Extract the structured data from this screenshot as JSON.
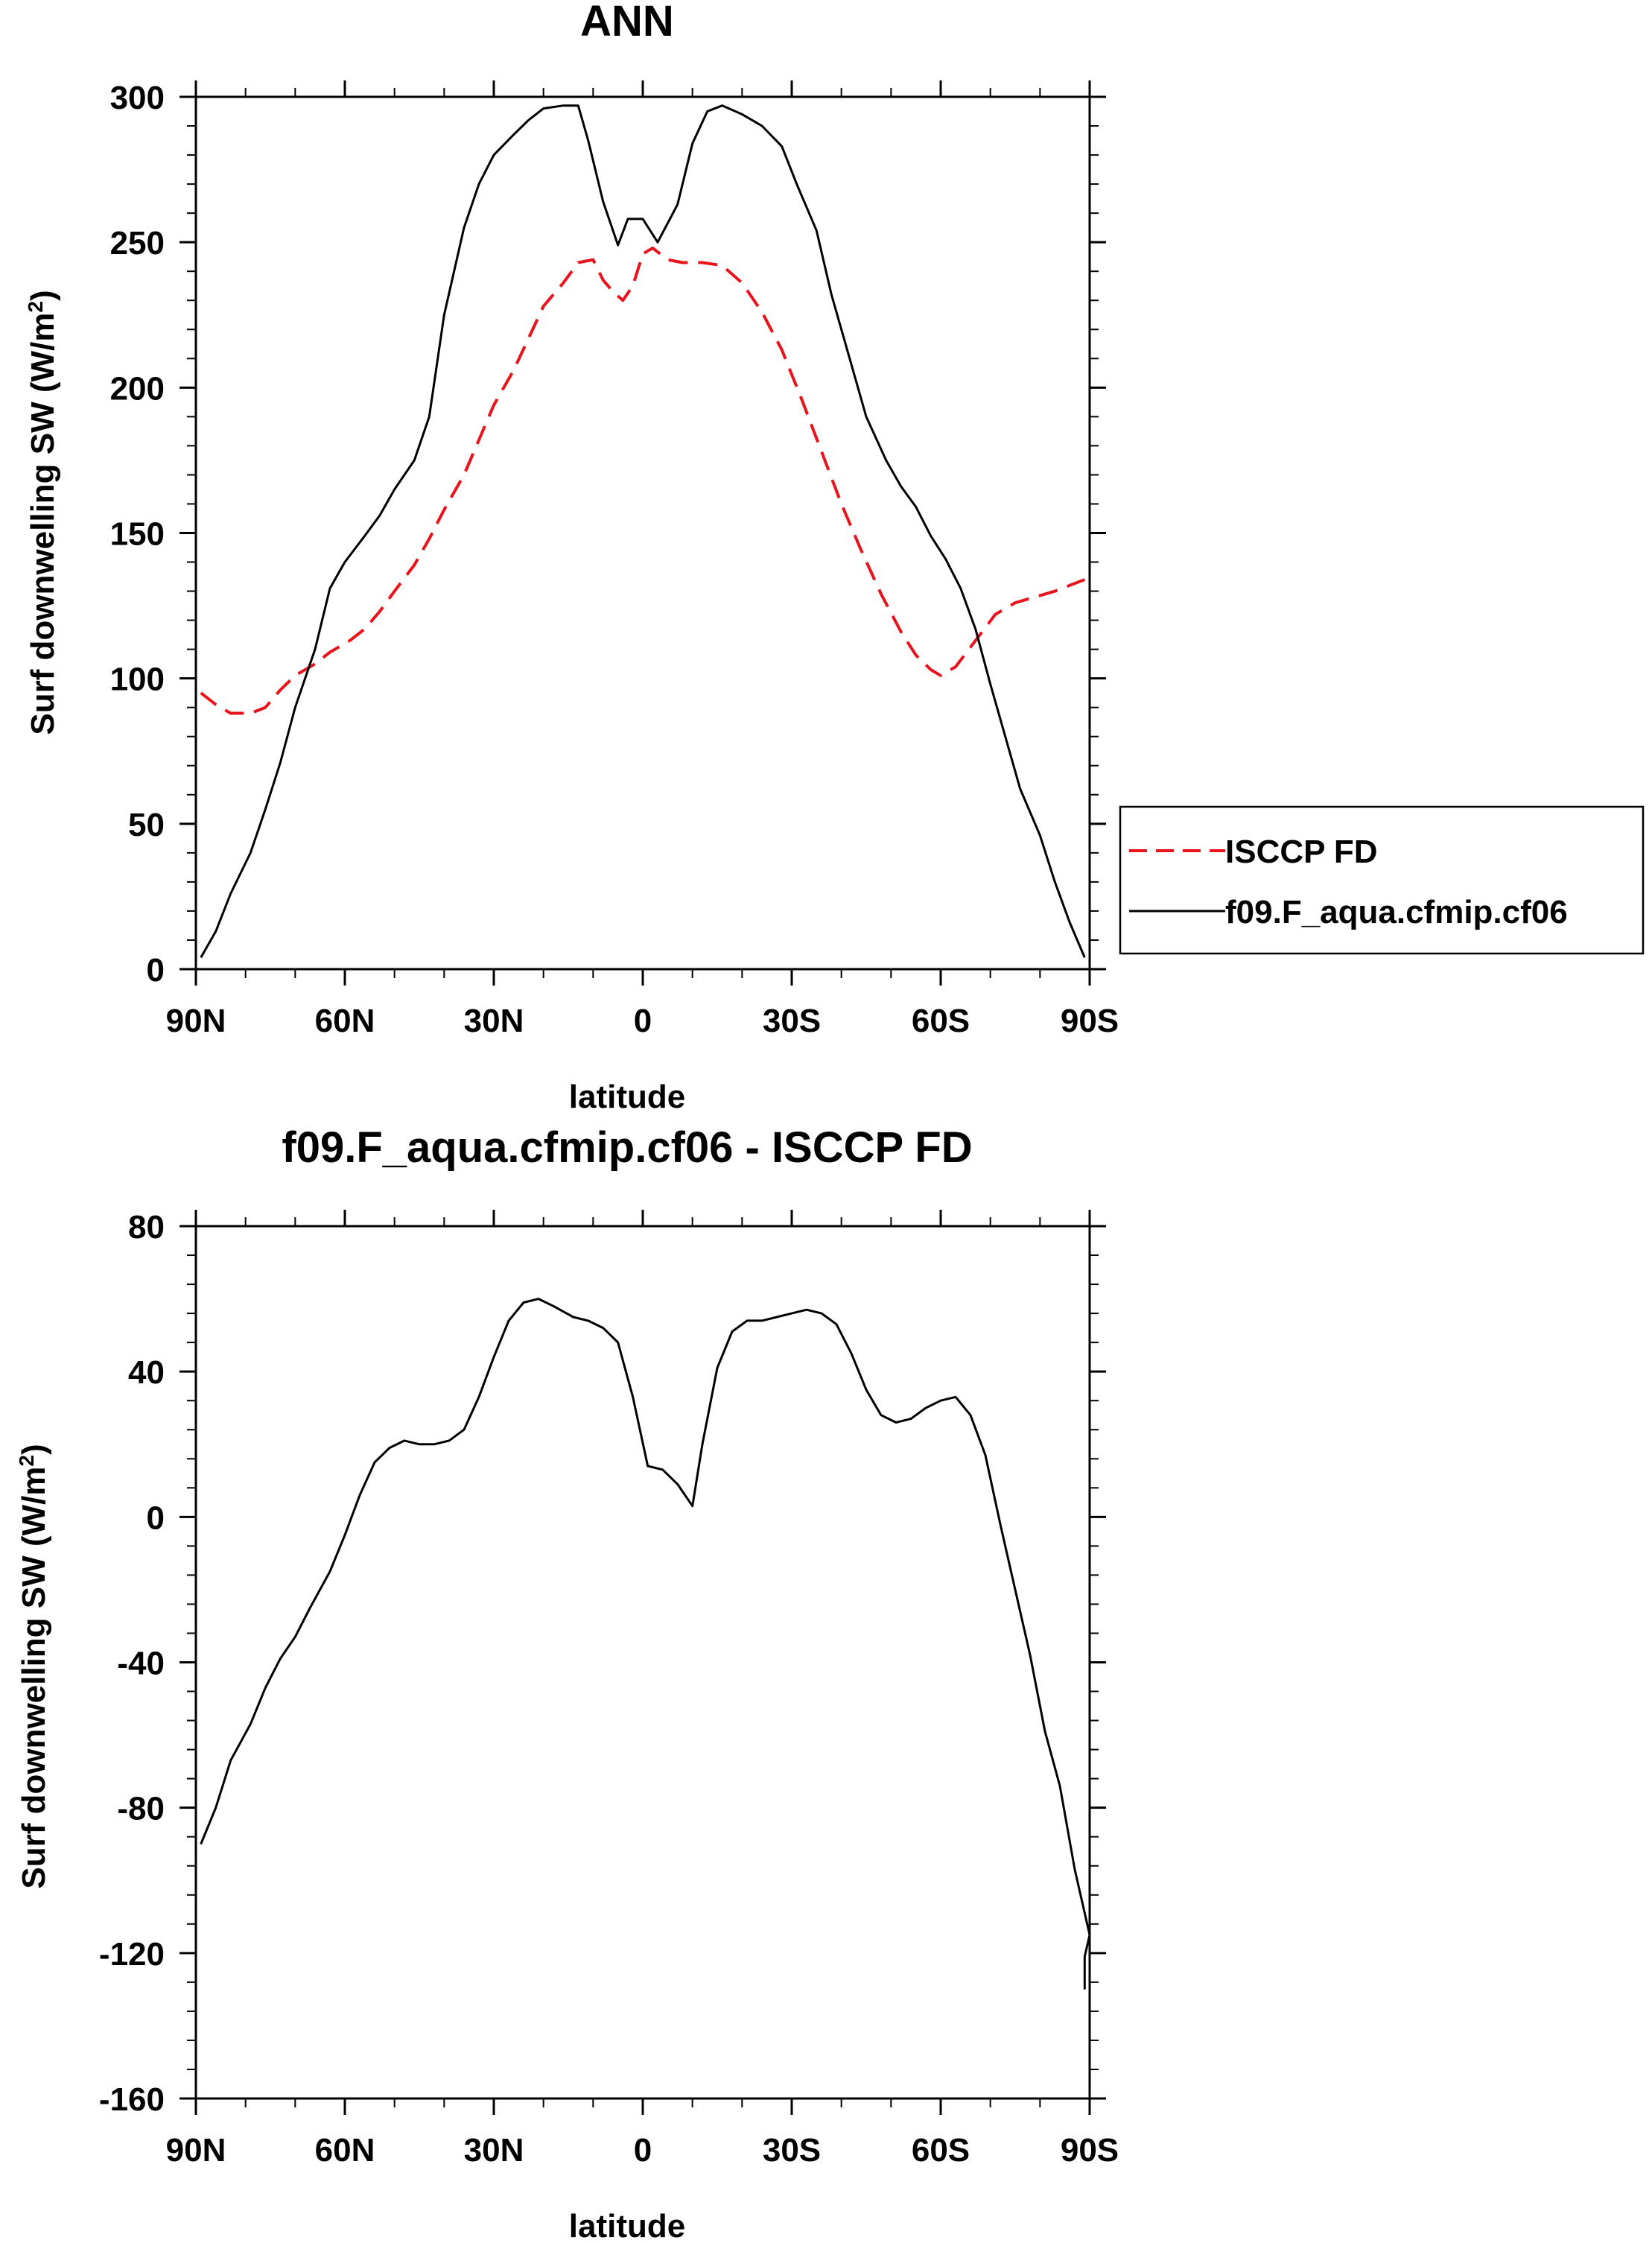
{
  "chart_data": [
    {
      "type": "line",
      "title": "ANN",
      "xlabel": "latitude",
      "ylabel_main": "Surf downwelling SW (W/m",
      "ylabel_sup": "2",
      "ylabel_close": ")",
      "xlim": [
        90,
        -90
      ],
      "ylim": [
        0,
        300
      ],
      "x_ticks": [
        90,
        60,
        30,
        0,
        -30,
        -60,
        -90
      ],
      "x_tick_labels": [
        "90N",
        "60N",
        "30N",
        "0",
        "30S",
        "60S",
        "90S"
      ],
      "y_ticks": [
        0,
        50,
        100,
        150,
        200,
        250,
        300
      ],
      "y_tick_labels": [
        "0",
        "50",
        "100",
        "150",
        "200",
        "250",
        "300"
      ],
      "legend": {
        "placement": "right"
      },
      "series": [
        {
          "name": "ISCCP FD",
          "color": "#e8141c",
          "dash": true,
          "points": [
            [
              89,
              95
            ],
            [
              86,
              91
            ],
            [
              83,
              88
            ],
            [
              79,
              88
            ],
            [
              76,
              90
            ],
            [
              73,
              96
            ],
            [
              70,
              101
            ],
            [
              66,
              105
            ],
            [
              63,
              109
            ],
            [
              59,
              113
            ],
            [
              56,
              117
            ],
            [
              53,
              123
            ],
            [
              50,
              130
            ],
            [
              46,
              139
            ],
            [
              43,
              148
            ],
            [
              40,
              158
            ],
            [
              36,
              170
            ],
            [
              33,
              182
            ],
            [
              30,
              194
            ],
            [
              26,
              206
            ],
            [
              23,
              217
            ],
            [
              20,
              228
            ],
            [
              16,
              236
            ],
            [
              13,
              243
            ],
            [
              10,
              244
            ],
            [
              8,
              237
            ],
            [
              6,
              233
            ],
            [
              4,
              230
            ],
            [
              2,
              235
            ],
            [
              0,
              246
            ],
            [
              -2,
              248
            ],
            [
              -5,
              244
            ],
            [
              -8,
              243
            ],
            [
              -12,
              243
            ],
            [
              -16,
              242
            ],
            [
              -20,
              236
            ],
            [
              -24,
              226
            ],
            [
              -28,
              213
            ],
            [
              -32,
              196
            ],
            [
              -36,
              178
            ],
            [
              -40,
              160
            ],
            [
              -44,
              144
            ],
            [
              -48,
              129
            ],
            [
              -52,
              116
            ],
            [
              -55,
              108
            ],
            [
              -58,
              103
            ],
            [
              -60,
              101
            ],
            [
              -63,
              104
            ],
            [
              -67,
              113
            ],
            [
              -71,
              122
            ],
            [
              -75,
              126
            ],
            [
              -79,
              128
            ],
            [
              -83,
              130
            ],
            [
              -86,
              132
            ],
            [
              -89,
              134
            ]
          ]
        },
        {
          "name": "f09.F_aqua.cfmip.cf06",
          "color": "#000000",
          "dash": false,
          "points": [
            [
              89,
              4
            ],
            [
              86,
              13
            ],
            [
              83,
              26
            ],
            [
              79,
              40
            ],
            [
              76,
              55
            ],
            [
              73,
              71
            ],
            [
              70,
              90
            ],
            [
              66,
              110
            ],
            [
              63,
              131
            ],
            [
              60,
              140
            ],
            [
              56,
              149
            ],
            [
              53,
              156
            ],
            [
              50,
              165
            ],
            [
              46,
              175
            ],
            [
              43,
              190
            ],
            [
              40,
              225
            ],
            [
              36,
              255
            ],
            [
              33,
              270
            ],
            [
              30,
              280
            ],
            [
              26,
              287
            ],
            [
              23,
              292
            ],
            [
              20,
              296
            ],
            [
              16,
              297
            ],
            [
              13,
              297
            ],
            [
              11,
              285
            ],
            [
              8,
              264
            ],
            [
              5,
              249
            ],
            [
              3,
              258
            ],
            [
              0,
              258
            ],
            [
              -3,
              250
            ],
            [
              -7,
              263
            ],
            [
              -10,
              284
            ],
            [
              -13,
              295
            ],
            [
              -16,
              297
            ],
            [
              -20,
              294
            ],
            [
              -24,
              290
            ],
            [
              -28,
              283
            ],
            [
              -31,
              270
            ],
            [
              -35,
              254
            ],
            [
              -38,
              232
            ],
            [
              -42,
              208
            ],
            [
              -45,
              190
            ],
            [
              -49,
              175
            ],
            [
              -52,
              166
            ],
            [
              -55,
              159
            ],
            [
              -58,
              149
            ],
            [
              -61,
              141
            ],
            [
              -64,
              131
            ],
            [
              -67,
              117
            ],
            [
              -70,
              98
            ],
            [
              -73,
              80
            ],
            [
              -76,
              62
            ],
            [
              -80,
              46
            ],
            [
              -83,
              30
            ],
            [
              -86,
              16
            ],
            [
              -89,
              4
            ]
          ]
        }
      ]
    },
    {
      "type": "line",
      "title": "f09.F_aqua.cfmip.cf06 - ISCCP FD",
      "xlabel": "latitude",
      "ylabel_main": "Surf downwelling SW (W/m",
      "ylabel_sup": "2",
      "ylabel_close": ")",
      "xlim": [
        90,
        -90
      ],
      "ylim": [
        -160,
        80
      ],
      "x_ticks": [
        90,
        60,
        30,
        0,
        -30,
        -60,
        -90
      ],
      "x_tick_labels": [
        "90N",
        "60N",
        "30N",
        "0",
        "30S",
        "60S",
        "90S"
      ],
      "y_ticks": [
        -160,
        -120,
        -80,
        -40,
        0,
        40,
        80
      ],
      "y_tick_labels": [
        "-160",
        "-120",
        "-80",
        "-40",
        "0",
        "40",
        "80"
      ],
      "series": [
        {
          "name": "f09.F_aqua.cfmip.cf06 - ISCCP FD",
          "color": "#000000",
          "dash": false,
          "points": [
            [
              89,
              -90
            ],
            [
              86,
              -80
            ],
            [
              83,
              -67
            ],
            [
              79,
              -57
            ],
            [
              76,
              -47
            ],
            [
              73,
              -39
            ],
            [
              70,
              -33
            ],
            [
              67,
              -25
            ],
            [
              63,
              -15
            ],
            [
              60,
              -5
            ],
            [
              57,
              6
            ],
            [
              54,
              15
            ],
            [
              51,
              19
            ],
            [
              48,
              21
            ],
            [
              45,
              20
            ],
            [
              42,
              20
            ],
            [
              39,
              21
            ],
            [
              36,
              24
            ],
            [
              33,
              33
            ],
            [
              30,
              44
            ],
            [
              27,
              54
            ],
            [
              24,
              59
            ],
            [
              21,
              60
            ],
            [
              18,
              58
            ],
            [
              14,
              55
            ],
            [
              11,
              54
            ],
            [
              8,
              52
            ],
            [
              5,
              48
            ],
            [
              2,
              33
            ],
            [
              -1,
              14
            ],
            [
              -4,
              13
            ],
            [
              -7,
              9
            ],
            [
              -10,
              3
            ],
            [
              -12,
              20
            ],
            [
              -15,
              41
            ],
            [
              -18,
              51
            ],
            [
              -21,
              54
            ],
            [
              -24,
              54
            ],
            [
              -27,
              55
            ],
            [
              -30,
              56
            ],
            [
              -33,
              57
            ],
            [
              -36,
              56
            ],
            [
              -39,
              53
            ],
            [
              -42,
              45
            ],
            [
              -45,
              35
            ],
            [
              -48,
              28
            ],
            [
              -51,
              26
            ],
            [
              -54,
              27
            ],
            [
              -57,
              30
            ],
            [
              -60,
              32
            ],
            [
              -63,
              33
            ],
            [
              -66,
              28
            ],
            [
              -69,
              17
            ],
            [
              -72,
              -2
            ],
            [
              -75,
              -20
            ],
            [
              -78,
              -38
            ],
            [
              -81,
              -59
            ],
            [
              -84,
              -74
            ],
            [
              -87,
              -97
            ],
            [
              -90,
              -115
            ],
            [
              -89,
              -121
            ],
            [
              -89,
              -130
            ]
          ]
        }
      ]
    }
  ]
}
